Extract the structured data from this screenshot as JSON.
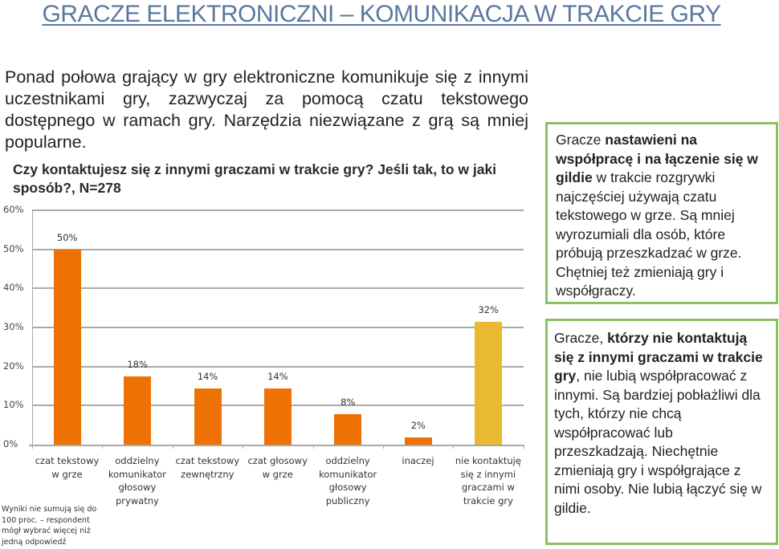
{
  "title": "GRACZE ELEKTRONICZNI – KOMUNIKACJA W TRAKCIE GRY",
  "intro": "Ponad połowa grający w gry elektroniczne komunikuje się z innymi uczestnikami gry, zazwyczaj za pomocą czatu tekstowego dostępnego w ramach gry. Narzędzia niezwiązane z grą są mniej popularne.",
  "question": "Czy kontaktujesz się z innymi graczami w trakcie gry? Jeśli tak, to w jaki sposób?, N=278",
  "footnote": "Wyniki nie sumują się do 100 proc. – respondent mógł wybrać więcej niż jedną odpowiedź",
  "colors": {
    "bar_primary": "#ee7203",
    "bar_highlight": "#e8b931",
    "box_border": "#8cc063",
    "title": "#5b77a0",
    "grid": "#a9a9a9"
  },
  "box1": {
    "pre": "Gracze ",
    "bold": "nastawieni na współpracę i na łączenie się w gildie",
    "post": " w trakcie rozgrywki najczęściej używają czatu tekstowego w grze. Są mniej wyrozumiali dla osób, które próbują przeszkadzać w grze. Chętniej też zmieniają gry i współgraczy."
  },
  "box2": {
    "pre": "Gracze, ",
    "bold": "którzy nie kontaktują się z innymi graczami w trakcie gry",
    "post": ", nie lubią współpracować z innymi. Są bardziej pobłażliwi dla tych, którzy nie chcą współpracować lub przeszkadzają. Niechętnie zmieniają gry i współgrające z nimi osoby. Nie lubią łączyć się w gildie."
  },
  "chart_data": {
    "type": "bar",
    "title": "Czy kontaktujesz się z innymi graczami w trakcie gry? Jeśli tak, to w jaki sposób?, N=278",
    "xlabel": "",
    "ylabel": "",
    "ylim": [
      0,
      60
    ],
    "yticks": [
      "0%",
      "10%",
      "20%",
      "30%",
      "40%",
      "50%",
      "60%"
    ],
    "grid": true,
    "legend": null,
    "categories": [
      "czat tekstowy w grze",
      "oddzielny komunikator głosowy prywatny",
      "czat tekstowy zewnętrzny",
      "czat głosowy w grze",
      "oddzielny komunikator głosowy publiczny",
      "inaczej",
      "nie kontaktuję się z innymi graczami w trakcie gry"
    ],
    "values": [
      50,
      18,
      14,
      14,
      8,
      2,
      32
    ],
    "value_labels": [
      "50%",
      "18%",
      "14%",
      "14%",
      "8%",
      "2%",
      "32%"
    ],
    "bar_heights_exact": [
      50,
      17.5,
      14.3,
      14.3,
      7.8,
      1.8,
      31.5
    ],
    "highlighted_category_index": 6
  }
}
